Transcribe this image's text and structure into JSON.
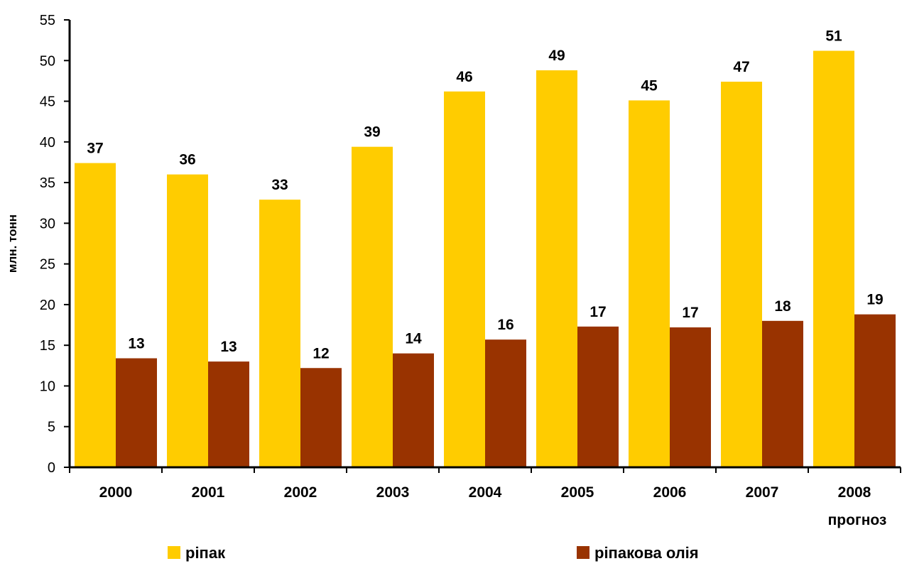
{
  "chart_data": {
    "type": "bar",
    "title": "",
    "xlabel": "",
    "ylabel": "млн. тонн",
    "categories": [
      "2000",
      "2001",
      "2002",
      "2003",
      "2004",
      "2005",
      "2006",
      "2007",
      "2008"
    ],
    "category_sublabels": [
      "",
      "",
      "",
      "",
      "",
      "",
      "",
      "",
      "прогноз"
    ],
    "series": [
      {
        "name": "ріпак",
        "color": "#FFCC00",
        "values": [
          37.4,
          36.0,
          32.9,
          39.4,
          46.2,
          48.8,
          45.1,
          47.4,
          51.2
        ],
        "labels": [
          "37",
          "36",
          "33",
          "39",
          "46",
          "49",
          "45",
          "47",
          "51"
        ]
      },
      {
        "name": "ріпакова олія",
        "color": "#993300",
        "values": [
          13.4,
          13.0,
          12.2,
          14.0,
          15.7,
          17.3,
          17.2,
          18.0,
          18.8
        ],
        "labels": [
          "13",
          "13",
          "12",
          "14",
          "16",
          "17",
          "17",
          "18",
          "19"
        ]
      }
    ],
    "ylim": [
      0,
      55
    ],
    "yticks": [
      0,
      5,
      10,
      15,
      20,
      25,
      30,
      35,
      40,
      45,
      50,
      55
    ],
    "grid": false,
    "legend_position": "bottom"
  }
}
